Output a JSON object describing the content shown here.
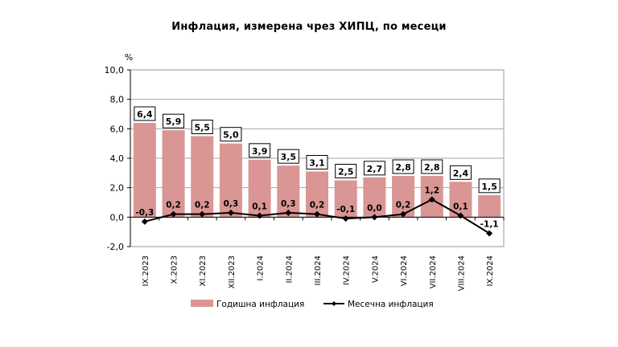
{
  "chart_data": {
    "type": "bar",
    "title": "Инфлация, измерена чрез ХИПЦ, по месеци",
    "ylabel": "%",
    "ylim": [
      -2.0,
      10.0
    ],
    "yticks": [
      "10,0",
      "8,0",
      "6,0",
      "4,0",
      "2,0",
      "0,0",
      "-2,0"
    ],
    "ytick_values": [
      10,
      8,
      6,
      4,
      2,
      0,
      -2
    ],
    "grid": true,
    "legend_position": "bottom",
    "categories": [
      "IX.2023",
      "X.2023",
      "XI.2023",
      "XII.2023",
      "I.2024",
      "II.2024",
      "III.2024",
      "IV.2024",
      "V.2024",
      "VI.2024",
      "VII.2024",
      "VIII.2024",
      "IX.2024"
    ],
    "series": [
      {
        "name": "Годишна инфлация",
        "type": "bar",
        "color": "#d99694",
        "values": [
          6.4,
          5.9,
          5.5,
          5.0,
          3.9,
          3.5,
          3.1,
          2.5,
          2.7,
          2.8,
          2.8,
          2.4,
          1.5
        ],
        "labels": [
          "6,4",
          "5,9",
          "5,5",
          "5,0",
          "3,9",
          "3,5",
          "3,1",
          "2,5",
          "2,7",
          "2,8",
          "2,8",
          "2,4",
          "1,5"
        ]
      },
      {
        "name": "Месечна инфлация",
        "type": "line",
        "color": "#000000",
        "values": [
          -0.3,
          0.2,
          0.2,
          0.3,
          0.1,
          0.3,
          0.2,
          -0.1,
          0.0,
          0.2,
          1.2,
          0.1,
          -1.1
        ],
        "labels": [
          "-0,3",
          "0,2",
          "0,2",
          "0,3",
          "0,1",
          "0,3",
          "0,2",
          "-0,1",
          "0,0",
          "0,2",
          "1,2",
          "0,1",
          "-1,1"
        ]
      }
    ]
  }
}
